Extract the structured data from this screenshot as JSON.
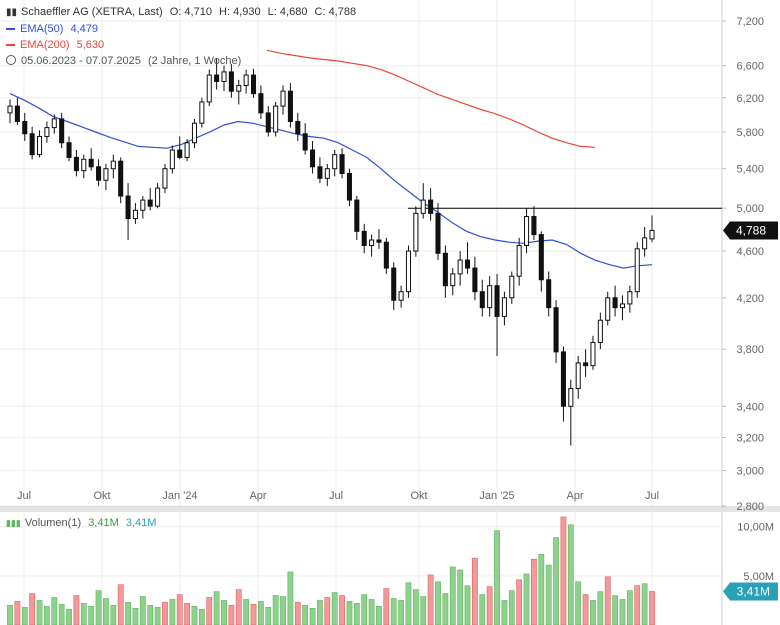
{
  "header": {
    "instrument": "Schaeffler AG (XETRA, Last)",
    "ohlc": {
      "open_label": "O:",
      "open": "4,710",
      "high_label": "H:",
      "high": "4,930",
      "low_label": "L:",
      "low": "4,680",
      "close_label": "C:",
      "close": "4,788"
    },
    "ema50": {
      "label": "EMA(50)",
      "value": "4,479",
      "color": "#2f4fd6"
    },
    "ema200": {
      "label": "EMA(200)",
      "value": "5,630",
      "color": "#e8453c"
    },
    "range": {
      "dates": "05.06.2023 - 07.07.2025",
      "duration": "(2 Jahre, 1 Woche)"
    },
    "volume": {
      "label": "Volumen(1)",
      "value1": "3,41M",
      "value2": "3,41M",
      "color": "#5cb85c"
    }
  },
  "price_badge": "4,788",
  "volume_badge": "3,41M",
  "chart_data": {
    "type": "candlestick",
    "title": "Schaeffler AG (XETRA, Last)",
    "y_scale": "log",
    "ylim": [
      2.8,
      7.5
    ],
    "y_ticks": [
      7.2,
      6.6,
      6.2,
      5.8,
      5.4,
      5.0,
      4.6,
      4.2,
      3.8,
      3.4,
      3.2,
      3.0,
      2.8
    ],
    "y_tick_labels": [
      "7,200",
      "6,600",
      "6,200",
      "5,800",
      "5,400",
      "5,000",
      "4,600",
      "4,200",
      "3,800",
      "3,400",
      "3,200",
      "3,000",
      "2,800"
    ],
    "x_ticks": [
      "Jul",
      "Okt",
      "Jan '24",
      "Apr",
      "Jul",
      "Okt",
      "Jan '25",
      "Apr",
      "Jul"
    ],
    "horizontal_line": 5.0,
    "last_close": 4.788,
    "candles": [
      [
        6.02,
        6.18,
        5.9,
        6.1
      ],
      [
        6.1,
        6.2,
        5.88,
        5.92
      ],
      [
        5.92,
        6.02,
        5.7,
        5.78
      ],
      [
        5.78,
        5.86,
        5.5,
        5.55
      ],
      [
        5.55,
        5.82,
        5.52,
        5.75
      ],
      [
        5.75,
        5.92,
        5.68,
        5.85
      ],
      [
        5.85,
        6.0,
        5.78,
        5.95
      ],
      [
        5.95,
        6.02,
        5.62,
        5.68
      ],
      [
        5.68,
        5.75,
        5.48,
        5.52
      ],
      [
        5.52,
        5.6,
        5.32,
        5.38
      ],
      [
        5.38,
        5.55,
        5.3,
        5.5
      ],
      [
        5.5,
        5.62,
        5.38,
        5.42
      ],
      [
        5.42,
        5.5,
        5.22,
        5.28
      ],
      [
        5.28,
        5.45,
        5.18,
        5.4
      ],
      [
        5.4,
        5.55,
        5.3,
        5.48
      ],
      [
        5.48,
        5.52,
        5.05,
        5.12
      ],
      [
        5.12,
        5.25,
        4.7,
        4.9
      ],
      [
        4.9,
        5.05,
        4.85,
        4.98
      ],
      [
        4.98,
        5.12,
        4.9,
        5.08
      ],
      [
        5.08,
        5.2,
        4.98,
        5.02
      ],
      [
        5.02,
        5.25,
        5.0,
        5.2
      ],
      [
        5.2,
        5.45,
        5.15,
        5.4
      ],
      [
        5.4,
        5.65,
        5.35,
        5.6
      ],
      [
        5.6,
        5.75,
        5.5,
        5.52
      ],
      [
        5.52,
        5.72,
        5.48,
        5.68
      ],
      [
        5.68,
        5.95,
        5.62,
        5.9
      ],
      [
        5.9,
        6.2,
        5.85,
        6.15
      ],
      [
        6.15,
        6.55,
        6.1,
        6.48
      ],
      [
        6.48,
        6.7,
        6.3,
        6.4
      ],
      [
        6.4,
        6.6,
        6.28,
        6.52
      ],
      [
        6.52,
        6.62,
        6.2,
        6.28
      ],
      [
        6.28,
        6.42,
        6.12,
        6.35
      ],
      [
        6.35,
        6.55,
        6.25,
        6.48
      ],
      [
        6.48,
        6.56,
        6.2,
        6.25
      ],
      [
        6.25,
        6.35,
        5.95,
        6.02
      ],
      [
        6.02,
        6.1,
        5.75,
        5.8
      ],
      [
        5.8,
        6.15,
        5.75,
        6.1
      ],
      [
        6.1,
        6.35,
        6.0,
        6.28
      ],
      [
        6.28,
        6.38,
        5.85,
        5.92
      ],
      [
        5.92,
        6.02,
        5.7,
        5.78
      ],
      [
        5.78,
        5.9,
        5.55,
        5.6
      ],
      [
        5.6,
        5.7,
        5.35,
        5.42
      ],
      [
        5.42,
        5.52,
        5.25,
        5.3
      ],
      [
        5.3,
        5.45,
        5.22,
        5.4
      ],
      [
        5.4,
        5.6,
        5.32,
        5.55
      ],
      [
        5.55,
        5.62,
        5.3,
        5.35
      ],
      [
        5.35,
        5.4,
        5.02,
        5.08
      ],
      [
        5.08,
        5.12,
        4.7,
        4.78
      ],
      [
        4.78,
        4.85,
        4.58,
        4.65
      ],
      [
        4.65,
        4.75,
        4.55,
        4.7
      ],
      [
        4.7,
        4.8,
        4.62,
        4.68
      ],
      [
        4.68,
        4.72,
        4.4,
        4.45
      ],
      [
        4.45,
        4.5,
        4.1,
        4.18
      ],
      [
        4.18,
        4.3,
        4.12,
        4.25
      ],
      [
        4.25,
        4.65,
        4.2,
        4.6
      ],
      [
        4.6,
        5.02,
        4.55,
        4.95
      ],
      [
        4.95,
        5.25,
        4.9,
        5.08
      ],
      [
        5.08,
        5.2,
        4.88,
        4.95
      ],
      [
        4.95,
        5.05,
        4.52,
        4.58
      ],
      [
        4.58,
        4.65,
        4.2,
        4.3
      ],
      [
        4.3,
        4.45,
        4.22,
        4.4
      ],
      [
        4.4,
        4.6,
        4.3,
        4.52
      ],
      [
        4.52,
        4.68,
        4.4,
        4.45
      ],
      [
        4.45,
        4.55,
        4.18,
        4.25
      ],
      [
        4.25,
        4.35,
        4.05,
        4.12
      ],
      [
        4.12,
        4.38,
        4.05,
        4.3
      ],
      [
        4.3,
        4.4,
        3.75,
        4.05
      ],
      [
        4.05,
        4.25,
        3.98,
        4.2
      ],
      [
        4.2,
        4.42,
        4.15,
        4.38
      ],
      [
        4.38,
        4.72,
        4.3,
        4.65
      ],
      [
        4.65,
        5.0,
        4.58,
        4.92
      ],
      [
        4.92,
        5.02,
        4.7,
        4.75
      ],
      [
        4.75,
        4.78,
        4.25,
        4.35
      ],
      [
        4.35,
        4.42,
        4.05,
        4.12
      ],
      [
        4.12,
        4.18,
        3.7,
        3.78
      ],
      [
        3.78,
        3.82,
        3.3,
        3.4
      ],
      [
        3.4,
        3.58,
        3.15,
        3.52
      ],
      [
        3.52,
        3.75,
        3.45,
        3.7
      ],
      [
        3.7,
        3.8,
        3.6,
        3.68
      ],
      [
        3.68,
        3.9,
        3.65,
        3.85
      ],
      [
        3.85,
        4.08,
        3.8,
        4.02
      ],
      [
        4.02,
        4.25,
        3.98,
        4.2
      ],
      [
        4.2,
        4.3,
        4.05,
        4.12
      ],
      [
        4.12,
        4.22,
        4.02,
        4.15
      ],
      [
        4.15,
        4.3,
        4.08,
        4.25
      ],
      [
        4.25,
        4.68,
        4.2,
        4.62
      ],
      [
        4.62,
        4.82,
        4.55,
        4.72
      ],
      [
        4.71,
        4.93,
        4.68,
        4.788
      ]
    ],
    "ema50": [
      6.25,
      6.17,
      6.08,
      5.98,
      5.92,
      5.86,
      5.8,
      5.74,
      5.69,
      5.64,
      5.63,
      5.62,
      5.66,
      5.73,
      5.8,
      5.88,
      5.92,
      5.9,
      5.86,
      5.82,
      5.78,
      5.75,
      5.73,
      5.68,
      5.6,
      5.52,
      5.4,
      5.27,
      5.16,
      5.05,
      4.96,
      4.86,
      4.78,
      4.73,
      4.7,
      4.68,
      4.67,
      4.69,
      4.7,
      4.66,
      4.58,
      4.52,
      4.48,
      4.45,
      4.47,
      4.479
    ],
    "ema200": [
      null,
      null,
      null,
      null,
      null,
      null,
      null,
      null,
      null,
      null,
      null,
      null,
      null,
      null,
      null,
      null,
      null,
      null,
      6.8,
      6.76,
      6.73,
      6.7,
      6.68,
      6.66,
      6.63,
      6.6,
      6.55,
      6.48,
      6.4,
      6.32,
      6.24,
      6.18,
      6.12,
      6.06,
      6.01,
      5.95,
      5.88,
      5.8,
      5.73,
      5.68,
      5.64,
      5.63,
      null,
      null,
      null,
      null
    ],
    "volume": {
      "y_ticks": [
        10.0,
        5.0
      ],
      "y_tick_labels": [
        "10,00M",
        "5,00M"
      ],
      "unit": "M",
      "values": [
        2.0,
        2.4,
        1.8,
        3.2,
        2.5,
        1.9,
        2.8,
        2.1,
        1.6,
        3.0,
        2.2,
        1.9,
        3.5,
        2.7,
        2.0,
        4.1,
        2.3,
        1.7,
        2.9,
        2.0,
        1.8,
        2.3,
        2.6,
        3.1,
        2.2,
        1.9,
        1.6,
        2.8,
        3.4,
        2.5,
        2.0,
        3.6,
        2.6,
        2.1,
        2.4,
        1.8,
        3.0,
        2.9,
        5.4,
        2.3,
        2.0,
        1.7,
        2.5,
        2.8,
        3.3,
        3.0,
        2.4,
        2.2,
        3.1,
        2.6,
        1.9,
        3.7,
        2.7,
        2.5,
        4.3,
        3.6,
        2.9,
        5.1,
        4.4,
        3.2,
        5.9,
        5.6,
        4.0,
        6.8,
        3.1,
        3.9,
        9.6,
        2.5,
        3.5,
        4.6,
        5.2,
        6.7,
        7.2,
        6.1,
        8.9,
        11.0,
        10.2,
        4.4,
        3.1,
        2.5,
        3.4,
        4.9,
        3.0,
        2.6,
        3.5,
        4.0,
        4.2,
        3.41
      ],
      "last": 3.41
    }
  }
}
